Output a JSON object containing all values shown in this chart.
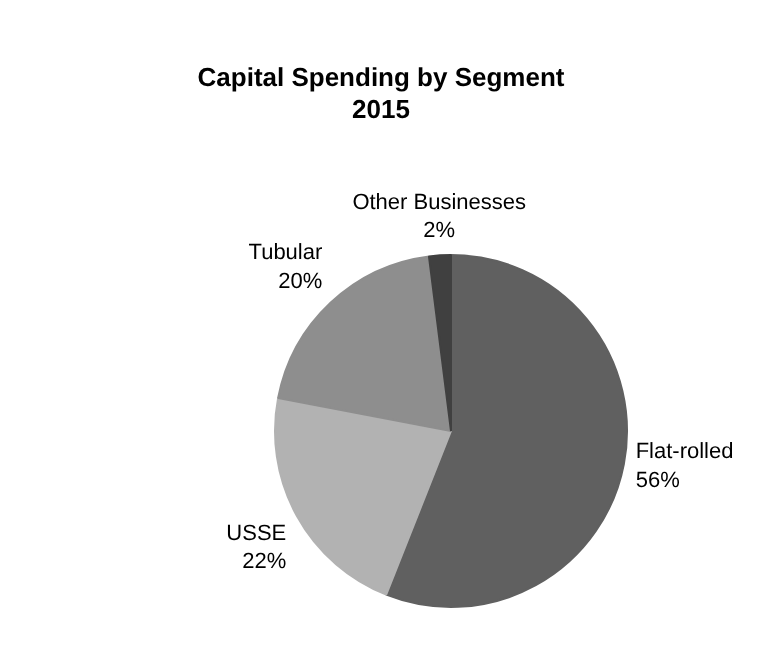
{
  "chart_data": {
    "type": "pie",
    "title": "Capital Spending by Segment",
    "subtitle": "2015",
    "categories": [
      "Flat-rolled",
      "USSE",
      "Tubular",
      "Other Businesses"
    ],
    "values": [
      56,
      22,
      20,
      2
    ],
    "value_labels": [
      "56%",
      "22%",
      "20%",
      "2%"
    ],
    "colors": [
      "#606060",
      "#b2b2b2",
      "#8e8e8e",
      "#404040"
    ]
  }
}
